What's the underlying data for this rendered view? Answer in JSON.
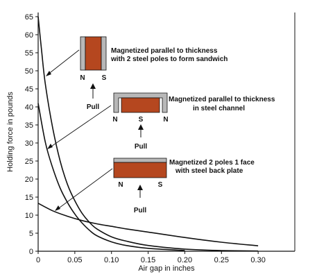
{
  "chart_data": {
    "type": "line",
    "xlabel": "Air gap in inches",
    "ylabel": "Holding force in pounds",
    "xlim": [
      0,
      0.35
    ],
    "ylim": [
      0,
      65
    ],
    "x_ticks": [
      "0",
      "0.05",
      "0.10",
      "0.15",
      "0.20",
      "0.25",
      "0.30"
    ],
    "y_ticks": [
      "0",
      "5",
      "10",
      "15",
      "20",
      "25",
      "30",
      "35",
      "40",
      "45",
      "50",
      "55",
      "60",
      "65"
    ],
    "grid": false,
    "series": [
      {
        "points": [
          {
            "x": 0.0,
            "y": 65
          },
          {
            "x": 0.005,
            "y": 55
          },
          {
            "x": 0.01,
            "y": 46
          },
          {
            "x": 0.02,
            "y": 34
          },
          {
            "x": 0.03,
            "y": 25
          },
          {
            "x": 0.04,
            "y": 18.5
          },
          {
            "x": 0.05,
            "y": 14
          },
          {
            "x": 0.06,
            "y": 10.5
          },
          {
            "x": 0.07,
            "y": 8
          },
          {
            "x": 0.08,
            "y": 6.2
          },
          {
            "x": 0.1,
            "y": 4
          },
          {
            "x": 0.12,
            "y": 2.8
          },
          {
            "x": 0.15,
            "y": 1.6
          },
          {
            "x": 0.2,
            "y": 0.6
          },
          {
            "x": 0.25,
            "y": 0.2
          },
          {
            "x": 0.3,
            "y": 0.05
          }
        ]
      },
      {
        "points": [
          {
            "x": 0.0,
            "y": 41
          },
          {
            "x": 0.01,
            "y": 30
          },
          {
            "x": 0.02,
            "y": 23
          },
          {
            "x": 0.03,
            "y": 17.5
          },
          {
            "x": 0.04,
            "y": 13.5
          },
          {
            "x": 0.05,
            "y": 10.3
          },
          {
            "x": 0.06,
            "y": 7.8
          },
          {
            "x": 0.07,
            "y": 5.8
          },
          {
            "x": 0.08,
            "y": 4.3
          },
          {
            "x": 0.1,
            "y": 2.6
          },
          {
            "x": 0.12,
            "y": 1.6
          },
          {
            "x": 0.15,
            "y": 0.8
          },
          {
            "x": 0.2,
            "y": 0.2
          }
        ]
      },
      {
        "points": [
          {
            "x": 0.0,
            "y": 13.3
          },
          {
            "x": 0.02,
            "y": 11.2
          },
          {
            "x": 0.04,
            "y": 9.7
          },
          {
            "x": 0.06,
            "y": 8.5
          },
          {
            "x": 0.08,
            "y": 7.6
          },
          {
            "x": 0.1,
            "y": 6.9
          },
          {
            "x": 0.12,
            "y": 6.2
          },
          {
            "x": 0.15,
            "y": 5.3
          },
          {
            "x": 0.2,
            "y": 3.8
          },
          {
            "x": 0.25,
            "y": 2.5
          },
          {
            "x": 0.3,
            "y": 1.5
          }
        ]
      }
    ],
    "annotations": [
      {
        "text": [
          "Magnetized parallel to thickness",
          "with 2 steel poles to form sandwich"
        ],
        "poles": [
          "N",
          "S"
        ],
        "pull": "Pull"
      },
      {
        "text": [
          "Magnetized parallel to thickness",
          "in steel channel"
        ],
        "poles": [
          "N",
          "S",
          "N"
        ],
        "pull": "Pull"
      },
      {
        "text": [
          "Magnetized 2 poles 1 face",
          "with steel back plate"
        ],
        "poles": [
          "N",
          "S"
        ],
        "pull": "Pull"
      }
    ],
    "colors": {
      "magnet": "#b5471f",
      "steel": "#b8b8b8",
      "line": "#111111"
    }
  }
}
